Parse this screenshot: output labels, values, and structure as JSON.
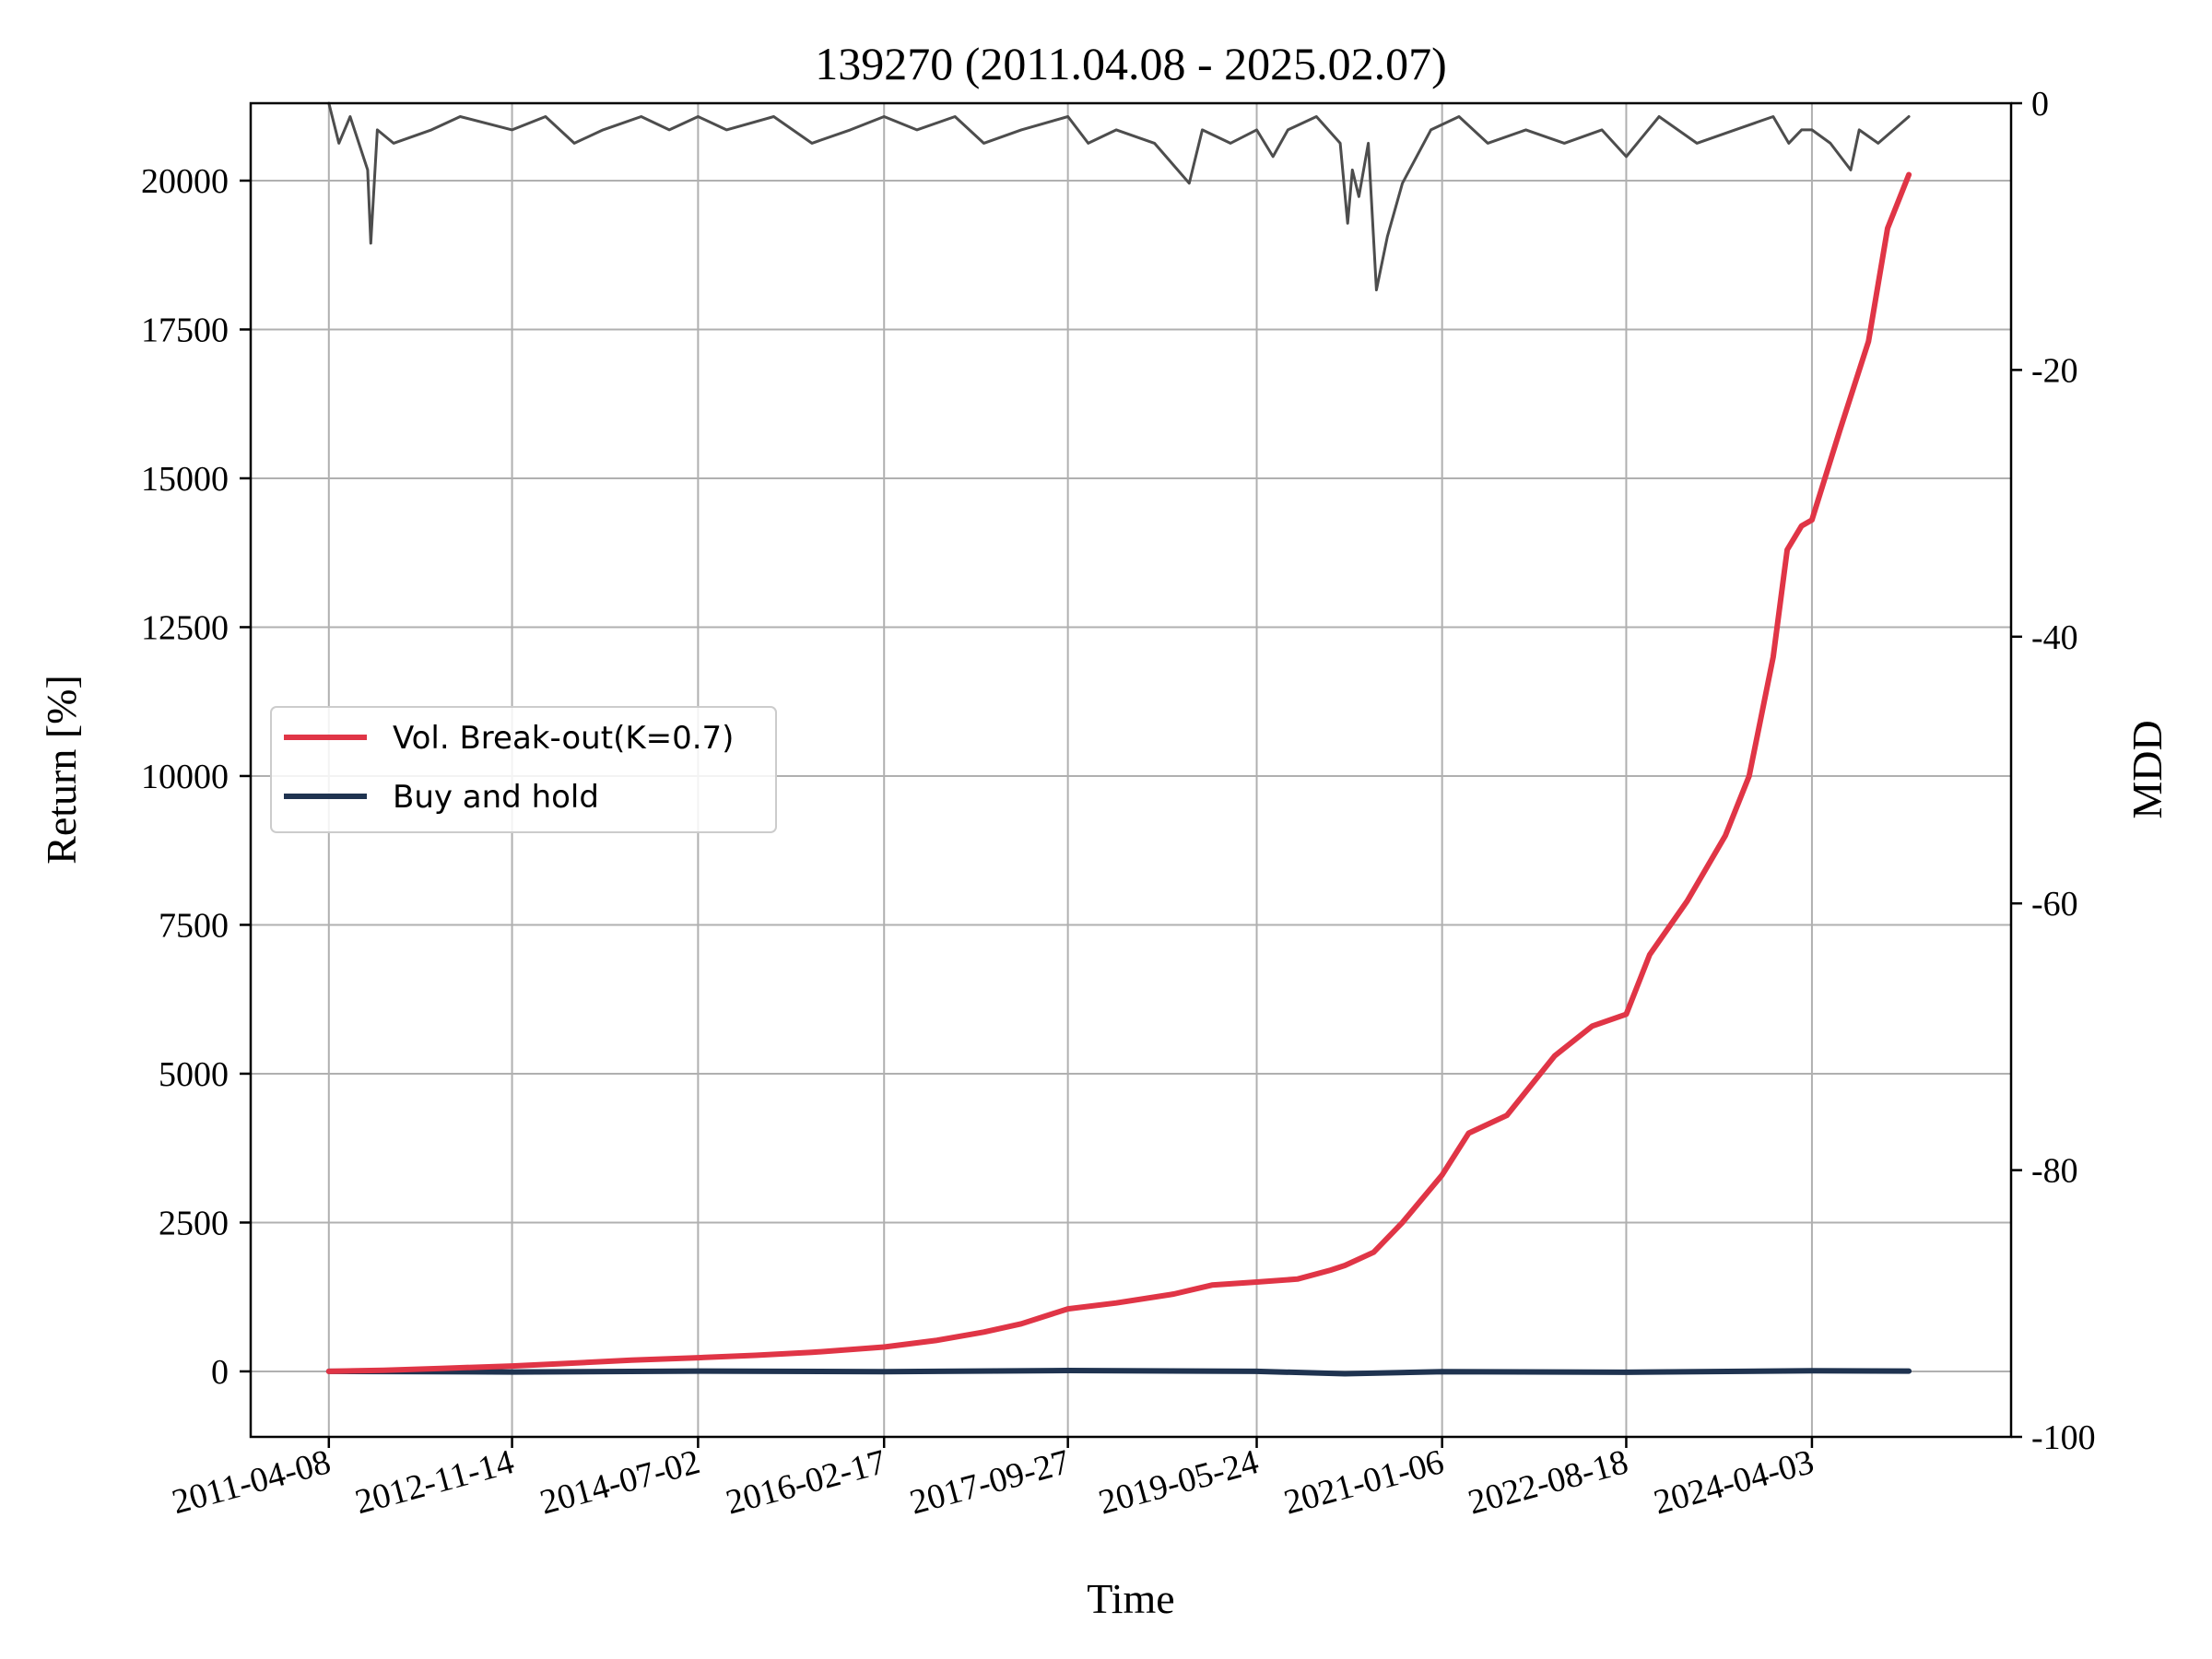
{
  "chart_data": {
    "type": "line",
    "title": "139270 (2011.04.08 - 2025.02.07)",
    "xlabel": "Time",
    "ylabel": "Return [%]",
    "y2label": "MDD",
    "grid": true,
    "legend_position": "center-left",
    "x_ticks": [
      "2011-04-08",
      "2012-11-14",
      "2014-07-02",
      "2016-02-17",
      "2017-09-27",
      "2019-05-24",
      "2021-01-06",
      "2022-08-18",
      "2024-04-03"
    ],
    "x_range": [
      "2010-08-01",
      "2025-12-31"
    ],
    "ylim": [
      -1100,
      21300
    ],
    "y_ticks": [
      0,
      2500,
      5000,
      7500,
      10000,
      12500,
      15000,
      17500,
      20000
    ],
    "y2lim": [
      -100,
      0
    ],
    "y2_ticks": [
      0,
      -20,
      -40,
      -60,
      -80,
      -100
    ],
    "colors": {
      "strategy": "#e03546",
      "buy_hold": "#1f3350",
      "mdd": "#4d4d4d"
    },
    "series": [
      {
        "name": "Vol. Break-out(K=0.7)",
        "axis": "left",
        "x": [
          "2011-04-08",
          "2011-10-01",
          "2012-04-01",
          "2012-11-14",
          "2013-06-01",
          "2013-12-01",
          "2014-07-02",
          "2015-01-01",
          "2015-07-01",
          "2016-02-17",
          "2016-08-01",
          "2017-01-01",
          "2017-05-01",
          "2017-09-27",
          "2018-03-01",
          "2018-09-01",
          "2019-01-01",
          "2019-05-24",
          "2019-10-01",
          "2020-01-15",
          "2020-03-01",
          "2020-06-01",
          "2020-09-01",
          "2021-01-06",
          "2021-04-01",
          "2021-08-01",
          "2022-01-01",
          "2022-05-01",
          "2022-08-18",
          "2022-11-01",
          "2023-03-01",
          "2023-07-01",
          "2023-09-15",
          "2023-10-20",
          "2023-12-01",
          "2024-01-15",
          "2024-03-01",
          "2024-04-03",
          "2024-07-01",
          "2024-10-01",
          "2024-12-01",
          "2025-02-07"
        ],
        "y": [
          0,
          20,
          50,
          90,
          140,
          190,
          230,
          270,
          320,
          410,
          520,
          660,
          800,
          1050,
          1150,
          1300,
          1450,
          1500,
          1550,
          1700,
          1780,
          2000,
          2500,
          3300,
          4000,
          4300,
          5300,
          5800,
          6000,
          7000,
          7900,
          9000,
          10000,
          10900,
          12000,
          13800,
          14200,
          14300,
          15800,
          17300,
          19200,
          20100
        ]
      },
      {
        "name": "Buy and hold",
        "axis": "left",
        "x": [
          "2011-04-08",
          "2012-11-14",
          "2014-07-02",
          "2016-02-17",
          "2017-09-27",
          "2019-05-24",
          "2020-03-01",
          "2021-01-06",
          "2022-08-18",
          "2024-04-03",
          "2025-02-07"
        ],
        "y": [
          0,
          -10,
          5,
          -5,
          15,
          0,
          -40,
          -5,
          -15,
          10,
          5
        ]
      },
      {
        "name": "",
        "axis": "right",
        "x": [
          "2011-04-08",
          "2011-05-10",
          "2011-06-15",
          "2011-08-10",
          "2011-08-20",
          "2011-09-10",
          "2011-11-01",
          "2012-03-01",
          "2012-06-01",
          "2012-11-14",
          "2013-03-01",
          "2013-06-01",
          "2013-09-01",
          "2014-01-01",
          "2014-04-01",
          "2014-07-02",
          "2014-10-01",
          "2015-03-01",
          "2015-07-01",
          "2015-11-01",
          "2016-02-17",
          "2016-06-01",
          "2016-10-01",
          "2017-01-01",
          "2017-05-01",
          "2017-09-27",
          "2017-12-01",
          "2018-03-01",
          "2018-07-01",
          "2018-10-20",
          "2018-12-01",
          "2019-03-01",
          "2019-05-24",
          "2019-07-15",
          "2019-09-01",
          "2019-12-01",
          "2020-02-15",
          "2020-03-10",
          "2020-03-25",
          "2020-04-15",
          "2020-05-15",
          "2020-06-10",
          "2020-07-15",
          "2020-09-01",
          "2020-12-01",
          "2021-03-01",
          "2021-06-01",
          "2021-10-01",
          "2022-02-01",
          "2022-06-01",
          "2022-08-18",
          "2022-12-01",
          "2023-04-01",
          "2023-08-01",
          "2023-12-01",
          "2024-01-20",
          "2024-03-01",
          "2024-04-03",
          "2024-06-01",
          "2024-08-05",
          "2024-09-01",
          "2024-11-01",
          "2025-02-07"
        ],
        "y": [
          0,
          -3,
          -1,
          -5,
          -10.5,
          -2,
          -3,
          -2,
          -1,
          -2,
          -1,
          -3,
          -2,
          -1,
          -2,
          -1,
          -2,
          -1,
          -3,
          -2,
          -1,
          -2,
          -1,
          -3,
          -2,
          -1,
          -3,
          -2,
          -3,
          -6,
          -2,
          -3,
          -2,
          -4,
          -2,
          -1,
          -3,
          -9,
          -5,
          -7,
          -3,
          -14,
          -10,
          -6,
          -2,
          -1,
          -3,
          -2,
          -3,
          -2,
          -4,
          -1,
          -3,
          -2,
          -1,
          -3,
          -2,
          -2,
          -3,
          -5,
          -2,
          -3,
          -1
        ]
      }
    ]
  }
}
